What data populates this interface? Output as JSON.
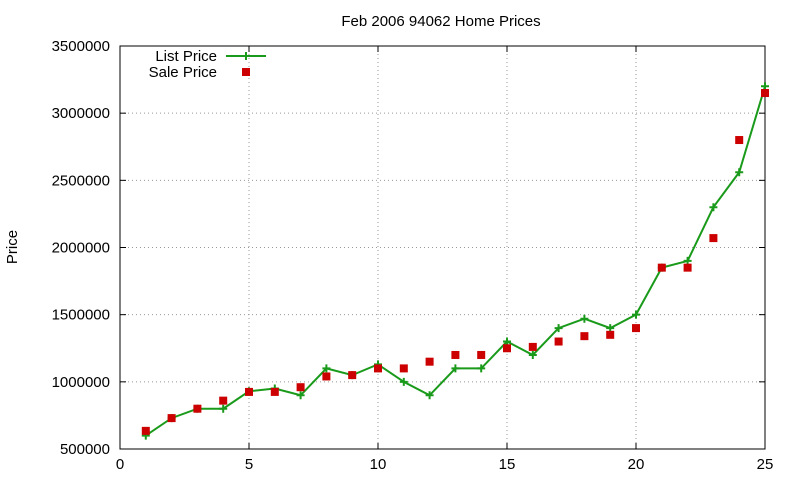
{
  "chart_data": {
    "type": "line",
    "title": "Feb 2006 94062 Home Prices",
    "xlabel": "",
    "ylabel": "Price",
    "xlim": [
      0,
      25
    ],
    "ylim": [
      500000,
      3500000
    ],
    "xticks": [
      0,
      5,
      10,
      15,
      20,
      25
    ],
    "yticks": [
      500000,
      1000000,
      1500000,
      2000000,
      2500000,
      3000000,
      3500000
    ],
    "grid": true,
    "legend_position": "top-left",
    "series": [
      {
        "name": "List Price",
        "style": "line+cross",
        "color": "#1a9a1a",
        "x": [
          1,
          2,
          3,
          4,
          5,
          6,
          7,
          8,
          9,
          10,
          11,
          12,
          13,
          14,
          15,
          16,
          17,
          18,
          19,
          20,
          21,
          22,
          23,
          24,
          25
        ],
        "y": [
          600000,
          730000,
          800000,
          800000,
          930000,
          950000,
          900000,
          1100000,
          1050000,
          1130000,
          1000000,
          900000,
          1100000,
          1100000,
          1300000,
          1200000,
          1400000,
          1470000,
          1400000,
          1500000,
          1850000,
          1900000,
          2300000,
          2560000,
          3200000
        ]
      },
      {
        "name": "Sale Price",
        "style": "square",
        "color": "#cc0000",
        "x": [
          1,
          2,
          3,
          4,
          5,
          6,
          7,
          8,
          9,
          10,
          11,
          12,
          13,
          14,
          15,
          16,
          17,
          18,
          19,
          20,
          21,
          22,
          23,
          24,
          25
        ],
        "y": [
          635000,
          730000,
          800000,
          860000,
          925000,
          925000,
          960000,
          1040000,
          1050000,
          1100000,
          1100000,
          1150000,
          1200000,
          1200000,
          1250000,
          1260000,
          1300000,
          1340000,
          1350000,
          1400000,
          1850000,
          1850000,
          2070000,
          2800000,
          3150000
        ]
      }
    ]
  }
}
